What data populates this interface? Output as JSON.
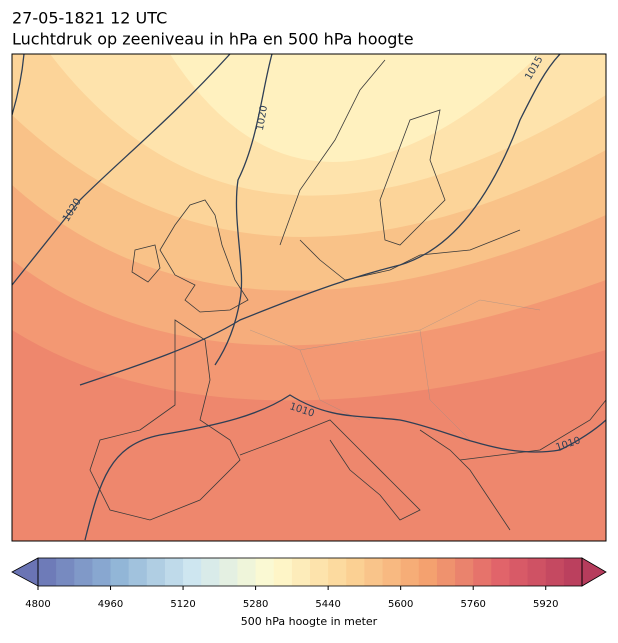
{
  "title": {
    "line1": "27-05-1821 12 UTC",
    "line2": "Luchtdruk op zeeniveau in hPa en 500 hPa hoogte"
  },
  "contour_labels": [
    "1020",
    "1020",
    "1015",
    "1010",
    "1010"
  ],
  "colorbar": {
    "lim": [
      4800,
      6000
    ],
    "step": 40,
    "colors": [
      "#6a74b4",
      "#8fb3d6",
      "#cfe7f0",
      "#fefbd0",
      "#fcd496",
      "#f4a26f",
      "#e0616a",
      "#b63c5c"
    ],
    "ticks": [
      4800,
      4960,
      5120,
      5280,
      5440,
      5600,
      5760,
      5920
    ],
    "label": "500 hPa hoogte in meter"
  }
}
